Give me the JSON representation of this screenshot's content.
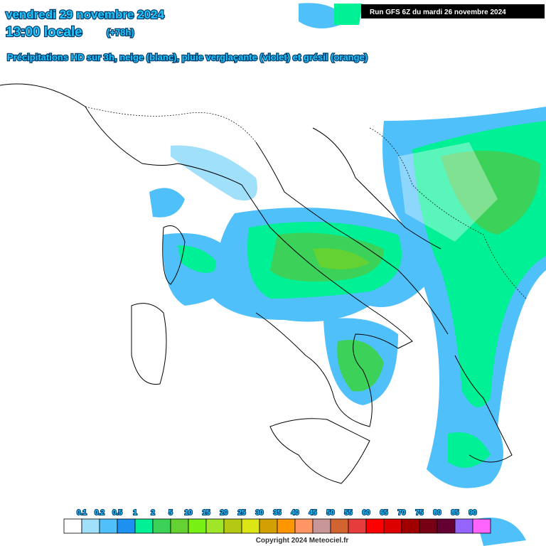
{
  "header": {
    "date": "vendredi 29 novembre 2024",
    "time": "13:00 locale",
    "lead": "(+78h)",
    "subtitle": "Précipitations HD sur 3h, neige (blanc), pluie verglaçante (violet) et grésil (orange)",
    "run": "Run GFS 6Z du mardi 26 novembre 2024"
  },
  "legend": {
    "labels": [
      "0.1",
      "0.2",
      "0.5",
      "1",
      "2",
      "5",
      "10",
      "15",
      "20",
      "25",
      "30",
      "35",
      "40",
      "45",
      "50",
      "55",
      "60",
      "65",
      "70",
      "75",
      "80",
      "85",
      "90"
    ],
    "colors": [
      "#ffffff",
      "#a0e0fa",
      "#50c0fa",
      "#1e90f0",
      "#00f096",
      "#3cd25a",
      "#64d232",
      "#78f014",
      "#a0e628",
      "#b4c814",
      "#dce614",
      "#d2a000",
      "#ff9600",
      "#ff9664",
      "#c89696",
      "#d26432",
      "#e63c3c",
      "#ff0000",
      "#dc0000",
      "#a00000",
      "#780014",
      "#640032",
      "#9664ff",
      "#ff64ff"
    ]
  },
  "footer": {
    "copyright": "Copyright 2024 Meteociel.fr"
  }
}
